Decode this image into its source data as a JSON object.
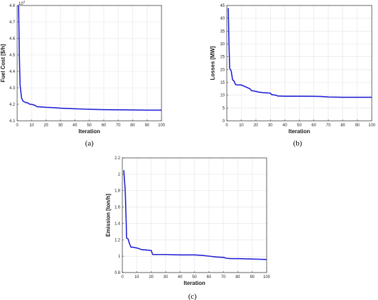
{
  "chart_data": [
    {
      "type": "line",
      "caption": "(a)",
      "xlabel": "Iteration",
      "ylabel": "Fuel Cost [$/h]",
      "y_exponent_label": "10",
      "y_exponent_power": "4",
      "xlim": [
        0,
        100
      ],
      "ylim": [
        4.1,
        4.8
      ],
      "xticks": [
        0,
        10,
        20,
        30,
        40,
        50,
        60,
        70,
        80,
        90,
        100
      ],
      "yticks": [
        4.1,
        4.2,
        4.3,
        4.4,
        4.5,
        4.6,
        4.7,
        4.8
      ],
      "ytick_labels": [
        "4.1",
        "4.2",
        "4.3",
        "4.4",
        "4.5",
        "4.6",
        "4.7",
        "4.8"
      ],
      "grid": true,
      "color": "#1f1fd6",
      "series": [
        {
          "x": [
            1,
            1.5,
            2,
            3,
            4,
            5,
            6,
            7,
            8,
            9,
            10,
            12,
            13,
            14,
            15,
            20,
            25,
            30,
            40,
            50,
            60,
            70,
            80,
            90,
            100
          ],
          "y": [
            4.8,
            4.5,
            4.32,
            4.24,
            4.22,
            4.215,
            4.21,
            4.21,
            4.205,
            4.2,
            4.2,
            4.195,
            4.19,
            4.185,
            4.185,
            4.182,
            4.18,
            4.177,
            4.173,
            4.17,
            4.168,
            4.167,
            4.166,
            4.165,
            4.165
          ]
        }
      ]
    },
    {
      "type": "line",
      "caption": "(b)",
      "xlabel": "Iteration",
      "ylabel": "Losses [MW]",
      "xlim": [
        0,
        100
      ],
      "ylim": [
        0,
        45
      ],
      "xticks": [
        0,
        10,
        20,
        30,
        40,
        50,
        60,
        70,
        80,
        90,
        100
      ],
      "yticks": [
        0,
        5,
        10,
        15,
        20,
        25,
        30,
        35,
        40,
        45
      ],
      "ytick_labels": [
        "0",
        "5",
        "10",
        "15",
        "20",
        "25",
        "30",
        "35",
        "40",
        "45"
      ],
      "grid": true,
      "color": "#1f1fd6",
      "series": [
        {
          "x": [
            1,
            1.5,
            2,
            3,
            4,
            5,
            6,
            7,
            10,
            12,
            14,
            16,
            17,
            20,
            22,
            25,
            30,
            31,
            34,
            35,
            40,
            50,
            60,
            65,
            70,
            80,
            90,
            100
          ],
          "y": [
            44,
            30,
            20.5,
            19.5,
            16,
            15.5,
            14.2,
            14,
            14,
            13.5,
            13,
            12.5,
            11.8,
            11.5,
            11.2,
            11,
            10.8,
            10.2,
            10,
            9.7,
            9.6,
            9.6,
            9.55,
            9.5,
            9.3,
            9.2,
            9.2,
            9.2
          ]
        }
      ]
    },
    {
      "type": "line",
      "caption": "(c)",
      "xlabel": "Iteration",
      "ylabel": "Emission [ton/h]",
      "xlim": [
        0,
        100
      ],
      "ylim": [
        0.8,
        2.2
      ],
      "xticks": [
        0,
        10,
        20,
        30,
        40,
        50,
        60,
        70,
        80,
        90,
        100
      ],
      "yticks": [
        0.8,
        1,
        1.2,
        1.4,
        1.6,
        1.8,
        2,
        2.2
      ],
      "ytick_labels": [
        "0.8",
        "1",
        "1.2",
        "1.4",
        "1.6",
        "1.8",
        "2",
        "2.2"
      ],
      "grid": true,
      "color": "#1f1fd6",
      "series": [
        {
          "x": [
            1,
            2,
            3,
            4,
            5,
            6,
            7,
            10,
            12,
            13,
            20,
            21,
            30,
            40,
            50,
            55,
            60,
            65,
            70,
            72,
            75,
            80,
            90,
            100
          ],
          "y": [
            2.05,
            1.8,
            1.22,
            1.21,
            1.15,
            1.11,
            1.11,
            1.1,
            1.09,
            1.08,
            1.07,
            1.02,
            1.02,
            1.015,
            1.015,
            1.01,
            1.0,
            0.99,
            0.985,
            0.975,
            0.97,
            0.97,
            0.965,
            0.96
          ]
        }
      ]
    }
  ]
}
